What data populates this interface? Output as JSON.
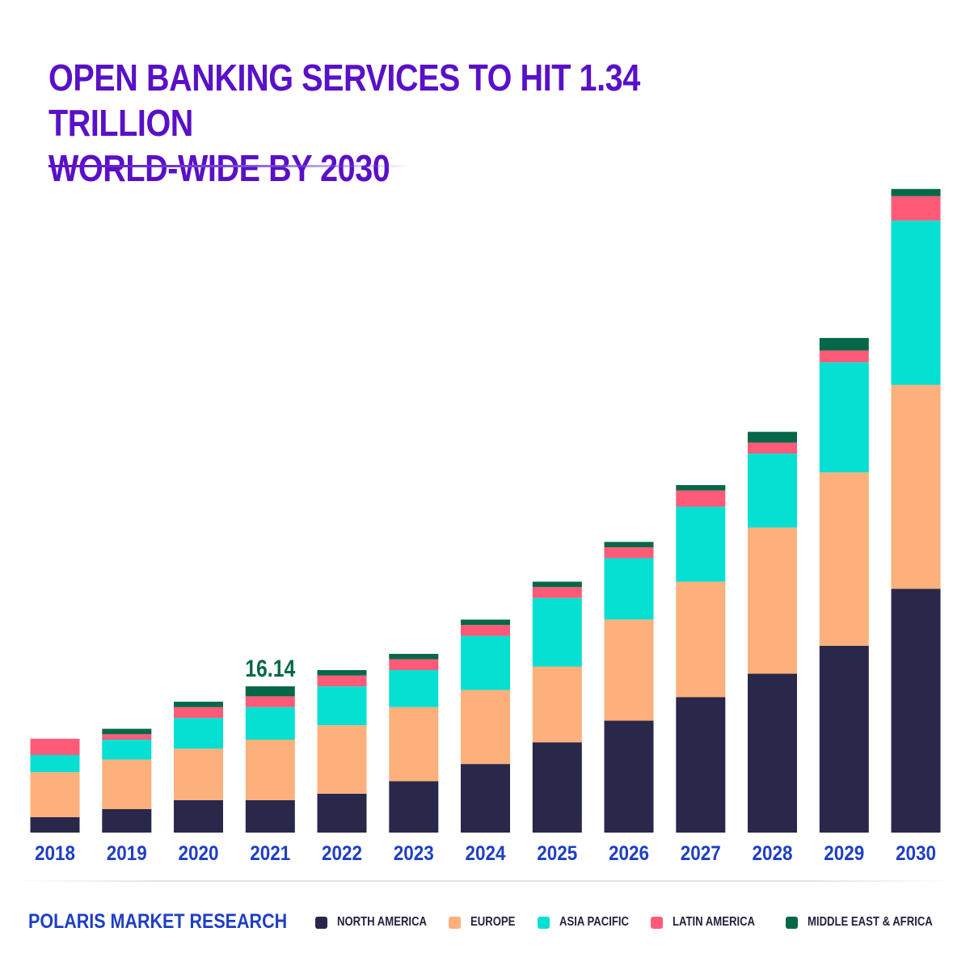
{
  "title_line1": "OPEN BANKING SERVICES TO HIT 1.34 TRILLION",
  "title_line2": "WORLD-WIDE BY 2030",
  "brand": "POLARIS MARKET RESEARCH",
  "colors": {
    "north_america": "#29274a",
    "europe": "#fdb07c",
    "asia_pacific": "#06e0d3",
    "latin_america": "#ff5b78",
    "middle_east_africa": "#046848",
    "title": "#5a10c8",
    "axis_labels": "#1e3fc4",
    "annotation": "#046848"
  },
  "legend": [
    {
      "key": "north_america",
      "label": "NORTH AMERICA",
      "color": "#29274a"
    },
    {
      "key": "europe",
      "label": "EUROPE",
      "color": "#fdb07c"
    },
    {
      "key": "asia_pacific",
      "label": "ASIA PACIFIC",
      "color": "#06e0d3"
    },
    {
      "key": "latin_america",
      "label": "LATIN AMERICA",
      "color": "#ff5b78"
    },
    {
      "key": "middle_east_africa",
      "label": "MIDDLE EAST & AFRICA",
      "color": "#046848"
    }
  ],
  "chart_data": {
    "type": "bar",
    "stacked": true,
    "title": "OPEN BANKING SERVICES TO HIT 1.34 TRILLION WORLD-WIDE BY 2030",
    "xlabel": "",
    "ylabel": "",
    "grid": false,
    "legend_position": "bottom-right",
    "categories": [
      "2018",
      "2019",
      "2020",
      "2021",
      "2022",
      "2023",
      "2024",
      "2025",
      "2026",
      "2027",
      "2028",
      "2029",
      "2030"
    ],
    "ylim": [
      0,
      72
    ],
    "series": [
      {
        "name": "NORTH AMERICA",
        "color": "#29274a",
        "values": [
          1.7,
          2.6,
          3.6,
          3.6,
          4.3,
          5.7,
          7.6,
          10.0,
          12.4,
          15.0,
          17.6,
          20.7,
          27.0
        ]
      },
      {
        "name": "EUROPE",
        "color": "#fdb07c",
        "values": [
          5.0,
          5.5,
          5.7,
          6.7,
          7.6,
          8.2,
          8.2,
          8.4,
          11.2,
          12.8,
          16.2,
          19.2,
          22.6
        ]
      },
      {
        "name": "ASIA PACIFIC",
        "color": "#06e0d3",
        "values": [
          1.9,
          2.2,
          3.4,
          3.6,
          4.3,
          4.1,
          6.0,
          7.6,
          6.8,
          8.3,
          8.2,
          12.2,
          18.2
        ]
      },
      {
        "name": "LATIN AMERICA",
        "color": "#ff5b78",
        "values": [
          1.8,
          0.6,
          1.2,
          1.2,
          1.2,
          1.2,
          1.2,
          1.2,
          1.2,
          1.8,
          1.2,
          1.3,
          2.7
        ]
      },
      {
        "name": "MIDDLE EAST & AFRICA",
        "color": "#046848",
        "values": [
          0.0,
          0.6,
          0.6,
          1.1,
          0.6,
          0.6,
          0.6,
          0.6,
          0.6,
          0.6,
          1.2,
          1.4,
          0.8
        ]
      }
    ],
    "annotations": [
      {
        "category": "2021",
        "text": "16.14"
      }
    ]
  }
}
